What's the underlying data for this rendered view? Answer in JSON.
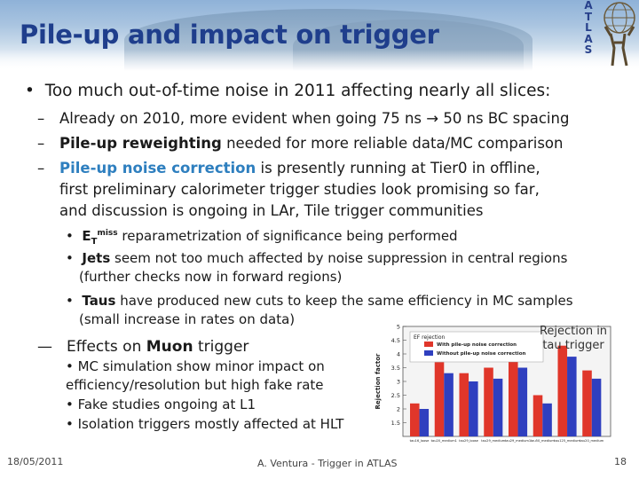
{
  "header": {
    "title": "Pile-up and impact on trigger",
    "atlas_letters": [
      "A",
      "T",
      "L",
      "A",
      "S"
    ]
  },
  "bullets": {
    "main": "Too much out-of-time noise in 2011 affecting nearly all slices:",
    "sub1": "Already on 2010, more evident when going 75 ns → 50 ns BC spacing",
    "sub2_bold": "Pile-up reweighting",
    "sub2_rest": " needed for more reliable data/MC comparison",
    "sub3_blue": "Pile-up noise correction",
    "sub3_rest": " is presently running at Tier0 in offline,",
    "sub3_line2": "first preliminary calorimeter trigger studies look promising so far,",
    "sub3_line3": "and discussion is ongoing in LAr, Tile trigger communities",
    "sub3_items": [
      {
        "bold": "E",
        "sub": "T",
        "sup": "miss",
        "rest": " reparametrization of significance being performed"
      },
      {
        "bold": "Jets",
        "rest": " seem not too much affected by noise suppression in central regions"
      },
      {
        "bold": "",
        "rest": "(further checks now in forward regions)"
      },
      {
        "bold": "Taus",
        "rest": " have produced new cuts to keep the same efficiency in MC samples"
      },
      {
        "bold": "",
        "rest": "(small increase in rates on data)"
      }
    ],
    "sub4_pre": "Effects on ",
    "sub4_bold": "Muon",
    "sub4_post": " trigger",
    "sub4_items": [
      "• MC simulation show minor impact on",
      "efficiency/resolution but high fake rate",
      "• Fake studies ongoing at L1",
      "• Isolation triggers mostly affected at HLT"
    ]
  },
  "chart_label": "Rejection in tau trigger",
  "chart_data": {
    "type": "bar",
    "title": "EF rejection",
    "ylabel": "Rejection factor",
    "ylim": [
      1,
      5
    ],
    "yticks": [
      "5",
      "4.5",
      "4",
      "3.5",
      "3",
      "2.5",
      "2",
      "1.5"
    ],
    "categories": [
      "tau16_loose",
      "tau20_medium1",
      "tau29_loose",
      "tau29_medium",
      "tau29_medium1",
      "tau50_medium",
      "tau125_medium",
      "tau20_medium"
    ],
    "series": [
      {
        "name": "With pile-up noise correction",
        "color": "#e0362a",
        "values": [
          2.2,
          3.7,
          3.3,
          3.5,
          3.9,
          2.5,
          4.3,
          3.4
        ]
      },
      {
        "name": "Without pile-up noise correction",
        "color": "#2f3fbf",
        "values": [
          2.0,
          3.3,
          3.0,
          3.1,
          3.5,
          2.2,
          3.9,
          3.1
        ]
      }
    ]
  },
  "footer": {
    "date": "18/05/2011",
    "center": "A. Ventura - Trigger in ATLAS",
    "page": "18"
  }
}
